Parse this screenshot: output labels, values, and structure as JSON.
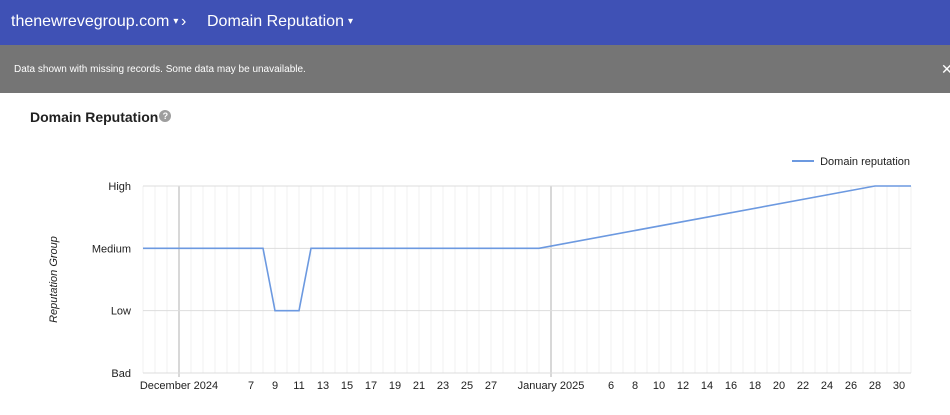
{
  "header": {
    "property_label": "thenewrevegroup.com",
    "separator": "›",
    "report_label": "Domain Reputation",
    "caret": "▾"
  },
  "banner": {
    "message": "Data shown with missing records. Some data may be unavailable.",
    "close": "✕"
  },
  "section": {
    "title": "Domain Reputation",
    "help": "?"
  },
  "colors": {
    "topbar": "#3f51b5",
    "banner": "#757575",
    "series": "#6c99e0"
  },
  "chart_data": {
    "type": "line",
    "ylabel": "Reputation Group",
    "y_categories": [
      "Bad",
      "Low",
      "Medium",
      "High"
    ],
    "legend": "top-right",
    "series": [
      {
        "name": "Domain reputation",
        "points": [
          {
            "x": "2024-11-28",
            "y": "Medium"
          },
          {
            "x": "2024-12-08",
            "y": "Medium"
          },
          {
            "x": "2024-12-09",
            "y": "Low"
          },
          {
            "x": "2024-12-10",
            "y": "Low"
          },
          {
            "x": "2024-12-11",
            "y": "Low"
          },
          {
            "x": "2024-12-12",
            "y": "Medium"
          },
          {
            "x": "2024-12-31",
            "y": "Medium"
          },
          {
            "x": "2025-01-28",
            "y": "High"
          },
          {
            "x": "2025-01-29",
            "y": "High"
          },
          {
            "x": "2025-01-30",
            "y": "High"
          },
          {
            "x": "2025-01-31",
            "y": "High"
          }
        ]
      }
    ],
    "x_ticks": [
      {
        "label": "December 2024",
        "x": "2024-12-01"
      },
      {
        "label": "7",
        "x": "2024-12-07"
      },
      {
        "label": "9",
        "x": "2024-12-09"
      },
      {
        "label": "11",
        "x": "2024-12-11"
      },
      {
        "label": "13",
        "x": "2024-12-13"
      },
      {
        "label": "15",
        "x": "2024-12-15"
      },
      {
        "label": "17",
        "x": "2024-12-17"
      },
      {
        "label": "19",
        "x": "2024-12-19"
      },
      {
        "label": "21",
        "x": "2024-12-21"
      },
      {
        "label": "23",
        "x": "2024-12-23"
      },
      {
        "label": "25",
        "x": "2024-12-25"
      },
      {
        "label": "27",
        "x": "2024-12-27"
      },
      {
        "label": "January 2025",
        "x": "2025-01-01"
      },
      {
        "label": "6",
        "x": "2025-01-06"
      },
      {
        "label": "8",
        "x": "2025-01-08"
      },
      {
        "label": "10",
        "x": "2025-01-10"
      },
      {
        "label": "12",
        "x": "2025-01-12"
      },
      {
        "label": "14",
        "x": "2025-01-14"
      },
      {
        "label": "16",
        "x": "2025-01-16"
      },
      {
        "label": "18",
        "x": "2025-01-18"
      },
      {
        "label": "20",
        "x": "2025-01-20"
      },
      {
        "label": "22",
        "x": "2025-01-22"
      },
      {
        "label": "24",
        "x": "2025-01-24"
      },
      {
        "label": "26",
        "x": "2025-01-26"
      },
      {
        "label": "28",
        "x": "2025-01-28"
      },
      {
        "label": "30",
        "x": "2025-01-30"
      }
    ],
    "x_range": [
      "2024-11-28",
      "2025-01-31"
    ],
    "grid": true
  }
}
